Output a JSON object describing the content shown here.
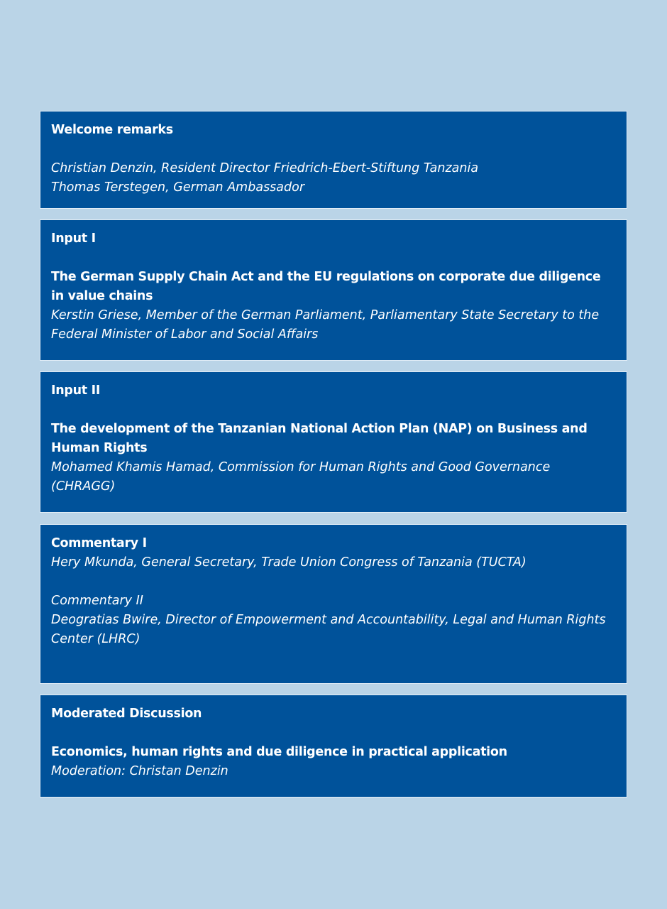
{
  "sections": [
    {
      "heading": "Welcome remarks",
      "speakers": [
        "Christian Denzin, Resident Director Friedrich-Ebert-Stiftung Tanzania",
        "Thomas Terstegen, German Ambassador"
      ]
    },
    {
      "heading": "Input I",
      "topic": "The German Supply Chain Act and the EU regulations on corporate due diligence in value chains",
      "speaker": "Kerstin Griese, Member of the German Parliament, Parliamentary State Secretary to the Federal Minister of Labor and Social Affairs"
    },
    {
      "heading": "Input II",
      "topic": "The development of the Tanzanian National Action Plan (NAP) on Business and Human Rights",
      "speaker": "Mohamed Khamis Hamad, Commission for Human Rights and Good Governance (CHRAGG)"
    },
    {
      "heading": "Commentary I",
      "speaker": "Hery Mkunda, General Secretary, Trade Union Congress of Tanzania (TUCTA)",
      "heading2": "Commentary II",
      "speaker2": "Deogratias Bwire, Director of Empowerment and Accountability, Legal and Human Rights Center (LHRC)"
    },
    {
      "heading": "Moderated Discussion",
      "topic": "Economics, human rights and due diligence in practical application",
      "speaker": "Moderation: Christan Denzin"
    }
  ],
  "colors": {
    "background": "#bad4e7",
    "box": "#00529a",
    "text": "#ffffff"
  }
}
